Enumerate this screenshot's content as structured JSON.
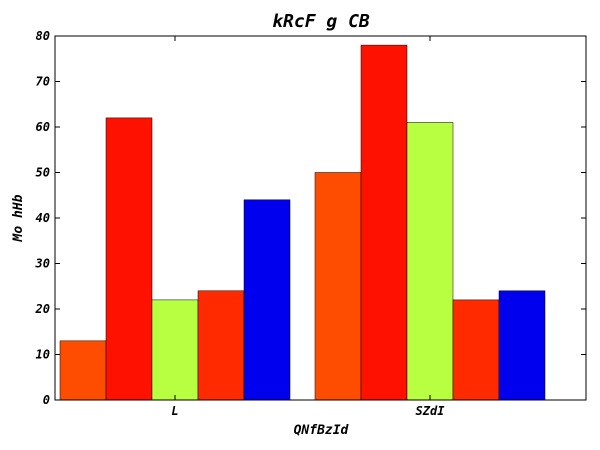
{
  "chart_data": {
    "type": "bar",
    "title": "kRcF g CB",
    "xlabel": "QNfBzId",
    "ylabel": "Mo hHb",
    "categories": [
      "L",
      "SZdI"
    ],
    "ylim": [
      0,
      80
    ],
    "yticks": [
      0,
      10,
      20,
      30,
      40,
      50,
      60,
      70,
      80
    ],
    "grid": false,
    "legend": "none",
    "series": [
      {
        "color": "#ff4d00",
        "values": [
          13,
          50
        ]
      },
      {
        "color": "#ff1100",
        "values": [
          62,
          78
        ]
      },
      {
        "color": "#b8ff42",
        "values": [
          22,
          61
        ]
      },
      {
        "color": "#ff2a00",
        "values": [
          24,
          22
        ]
      },
      {
        "color": "#0000ee",
        "values": [
          44,
          24
        ]
      }
    ]
  }
}
